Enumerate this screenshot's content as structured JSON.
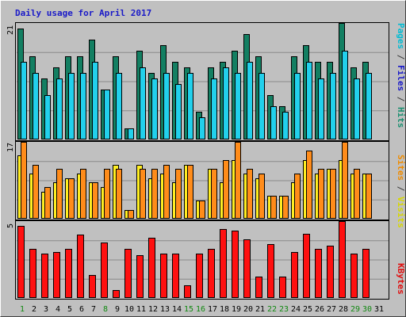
{
  "chart_data": {
    "type": "bar",
    "title": "Daily usage for April 2017",
    "days": [
      "1",
      "2",
      "3",
      "4",
      "5",
      "6",
      "7",
      "8",
      "9",
      "10",
      "11",
      "12",
      "13",
      "14",
      "15",
      "16",
      "17",
      "18",
      "19",
      "20",
      "21",
      "22",
      "23",
      "24",
      "25",
      "26",
      "27",
      "28",
      "29",
      "30",
      "31"
    ],
    "weekend_days": [
      "1",
      "8",
      "15",
      "16",
      "22",
      "23",
      "29",
      "30"
    ],
    "panels": [
      {
        "id": "pages",
        "max_label": "21",
        "ymax": 21,
        "legend": [
          {
            "text": "Pages",
            "color": "#00bcd4"
          },
          {
            "text": " / ",
            "color": "#3a3a3a"
          },
          {
            "text": "Files",
            "color": "#1a1ac8"
          },
          {
            "text": " / ",
            "color": "#3a3a3a"
          },
          {
            "text": "Hits",
            "color": "#1b8f70"
          }
        ],
        "series": [
          {
            "name": "Hits",
            "color": "#137f62",
            "values": [
              20,
              15,
              11,
              13,
              15,
              15,
              18,
              9,
              15,
              2,
              16,
              12,
              17,
              14,
              13,
              5,
              13,
              14,
              16,
              19,
              15,
              8,
              6,
              15,
              17,
              14,
              14,
              21,
              13,
              14,
              null
            ]
          },
          {
            "name": "Pages",
            "color": "#22d0ec",
            "values": [
              14,
              12,
              8,
              11,
              12,
              12,
              14,
              9,
              12,
              2,
              13,
              11,
              12,
              10,
              12,
              4,
              11,
              13,
              12,
              14,
              12,
              6,
              5,
              12,
              14,
              11,
              12,
              16,
              11,
              12,
              null
            ]
          }
        ]
      },
      {
        "id": "sites",
        "max_label": "17",
        "ymax": 17,
        "legend": [
          {
            "text": "Sites",
            "color": "#f08c00"
          },
          {
            "text": " / ",
            "color": "#3a3a3a"
          },
          {
            "text": "Visits",
            "color": "#d8d800"
          }
        ],
        "series": [
          {
            "name": "Visits",
            "color": "#ffee22",
            "values": [
              14,
              10,
              6,
              8,
              9,
              10,
              8,
              7,
              12,
              2,
              12,
              9,
              10,
              8,
              12,
              4,
              11,
              8,
              13,
              10,
              9,
              5,
              5,
              8,
              13,
              10,
              11,
              13,
              10,
              10,
              null
            ]
          },
          {
            "name": "Sites",
            "color": "#ff8c1a",
            "values": [
              17,
              12,
              7,
              11,
              9,
              11,
              8,
              11,
              11,
              2,
              11,
              11,
              12,
              11,
              12,
              4,
              11,
              13,
              17,
              11,
              10,
              5,
              5,
              10,
              15,
              11,
              11,
              17,
              11,
              10,
              null
            ]
          }
        ]
      },
      {
        "id": "kbytes",
        "max_label": "5",
        "ymax": 5,
        "legend": [
          {
            "text": "KBytes",
            "color": "#e01010"
          }
        ],
        "series": [
          {
            "name": "KBytes",
            "color": "#ff1010",
            "values": [
              4.7,
              3.2,
              2.9,
              3.0,
              3.2,
              4.1,
              1.5,
              3.6,
              0.5,
              3.2,
              2.8,
              3.9,
              2.9,
              2.9,
              0.8,
              2.9,
              3.2,
              4.5,
              4.4,
              3.8,
              1.4,
              3.5,
              1.4,
              3.0,
              4.2,
              3.2,
              3.4,
              5.0,
              2.9,
              3.2,
              null
            ]
          }
        ]
      }
    ]
  },
  "colors": {
    "background": "#c0c0c0",
    "gridline": "#8a8a8a",
    "weekday_label": "#000000",
    "weekend_label": "#118811"
  }
}
